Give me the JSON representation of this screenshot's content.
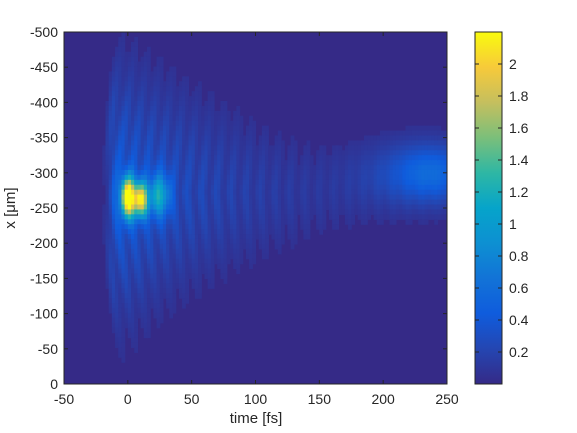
{
  "chart_data": {
    "type": "heatmap",
    "title": "",
    "xlabel": "time [fs]",
    "ylabel": "x [μm]",
    "xlim": [
      -50,
      250
    ],
    "ylim": [
      0,
      -500
    ],
    "y_reversed": true,
    "x_ticks": [
      "-50",
      "0",
      "50",
      "100",
      "150",
      "200",
      "250"
    ],
    "y_ticks": [
      "-500",
      "-450",
      "-400",
      "-350",
      "-300",
      "-250",
      "-200",
      "-150",
      "-100",
      "-50",
      "0"
    ],
    "colorbar": {
      "colormap": "parula",
      "range": [
        0,
        2.2
      ],
      "ticks": [
        "2",
        "1.8",
        "1.6",
        "1.4",
        "1.2",
        "1",
        "0.8",
        "0.6",
        "0.4",
        "0.2"
      ]
    },
    "features": [
      {
        "label": "main peak",
        "time_fs": 0,
        "x_um": -265,
        "value": 2.15
      },
      {
        "label": "secondary peak",
        "time_fs": 10,
        "x_um": -262,
        "value": 1.8
      },
      {
        "label": "fringe decay",
        "time_range_fs": [
          0,
          150
        ],
        "x_center_um": -272
      },
      {
        "label": "late blob",
        "time_fs": 240,
        "x_um": -300,
        "value": 0.5
      }
    ]
  }
}
